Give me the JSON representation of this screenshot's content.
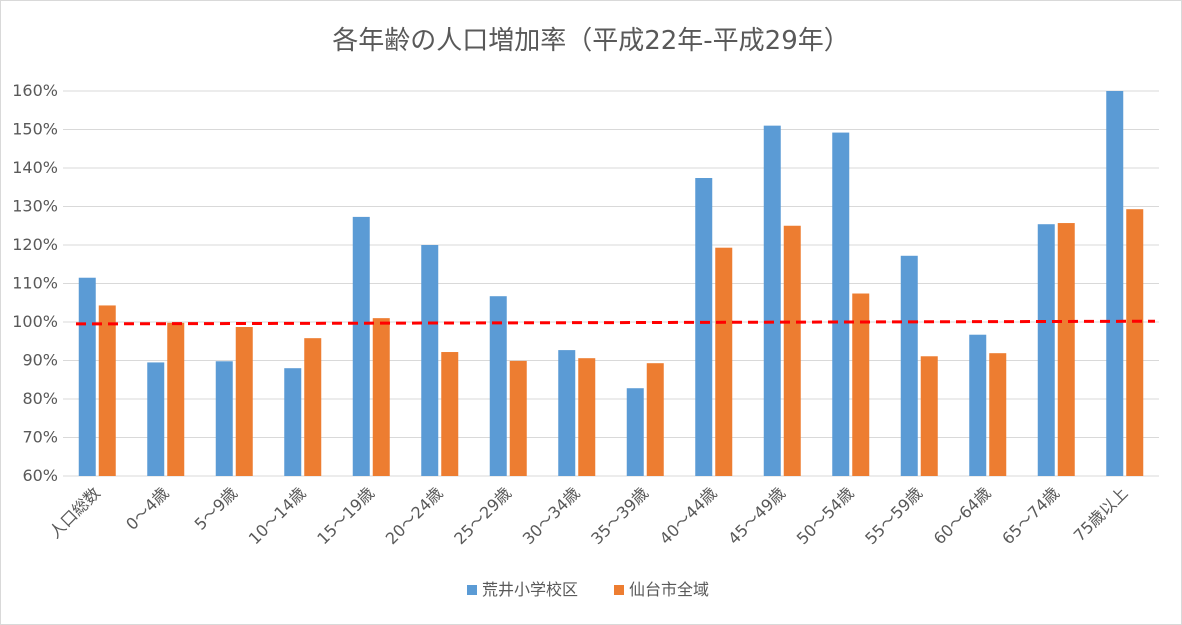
{
  "chart_data": {
    "type": "bar",
    "title": "各年齢の人口増加率（平成22年-平成29年）",
    "categories": [
      "人口総数",
      "0～4歳",
      "5～9歳",
      "10～14歳",
      "15～19歳",
      "20～24歳",
      "25～29歳",
      "30～34歳",
      "35～39歳",
      "40～44歳",
      "45～49歳",
      "50～54歳",
      "55～59歳",
      "60～64歳",
      "65～74歳",
      "75歳以上"
    ],
    "series": [
      {
        "name": "荒井小学校区",
        "color": "#5b9bd5",
        "values": [
          111.5,
          89.5,
          89.8,
          88.0,
          127.3,
          120.0,
          106.7,
          92.7,
          82.8,
          137.4,
          151.0,
          149.2,
          117.2,
          96.7,
          125.4,
          160.0
        ]
      },
      {
        "name": "仙台市全域",
        "color": "#ed7d31",
        "values": [
          104.3,
          99.8,
          98.7,
          95.8,
          101.0,
          92.2,
          89.9,
          90.6,
          89.3,
          119.3,
          125.0,
          107.4,
          91.1,
          91.9,
          125.7,
          129.3
        ]
      }
    ],
    "ylim": [
      60,
      160
    ],
    "yticks": [
      60,
      70,
      80,
      90,
      100,
      110,
      120,
      130,
      140,
      150,
      160
    ],
    "ytick_labels": [
      "60%",
      "70%",
      "80%",
      "90%",
      "100%",
      "110%",
      "120%",
      "130%",
      "140%",
      "150%",
      "160%"
    ],
    "xlabel": "",
    "ylabel": "",
    "grid": true,
    "legend_position": "bottom",
    "reference_line": {
      "value_start": 99.5,
      "value_end": 100.2,
      "color": "#ff0000",
      "style": "dashed"
    }
  }
}
